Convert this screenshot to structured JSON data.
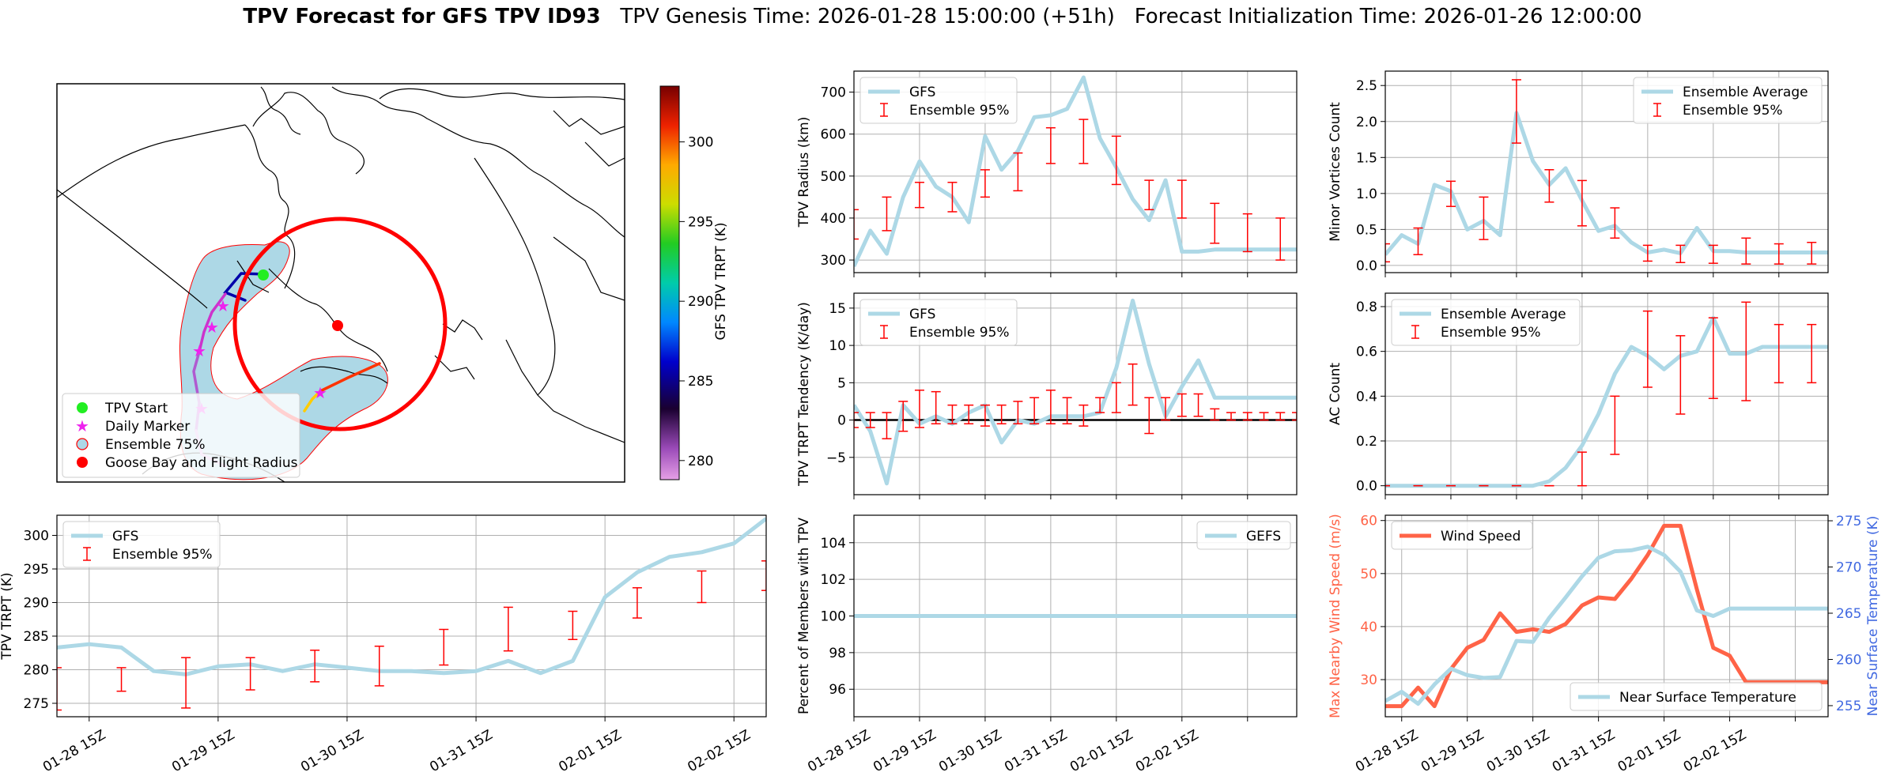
{
  "header": {
    "title_bold": "TPV Forecast for GFS TPV ID93",
    "title_rest": "   TPV Genesis Time: 2026-01-28 15:00:00 (+51h)   Forecast Initialization Time: 2026-01-26 12:00:00"
  },
  "colors": {
    "gfs": "#add8e6",
    "ens": "#ff0000",
    "wind": "#ff6347",
    "temp_axis": "#4169e1",
    "zero": "#000000"
  },
  "map": {
    "legend": [
      {
        "label": "TPV Start",
        "marker": "circle",
        "color": "#22ee22"
      },
      {
        "label": "Daily Marker",
        "marker": "star",
        "color": "#ee22ee"
      },
      {
        "label": "Ensemble 75%",
        "marker": "circle",
        "color": "#add8e6",
        "edge": "#ff0000"
      },
      {
        "label": "Goose Bay and Flight Radius",
        "marker": "circle",
        "color": "#ff0000"
      }
    ],
    "colorbar": {
      "label": "GFS TPV TRPT (K)",
      "ticks": [
        280,
        285,
        290,
        295,
        300
      ],
      "range": [
        278.8,
        303.5
      ]
    }
  },
  "chart_data": [
    {
      "id": "radius",
      "type": "line",
      "ylabel": "TPV Radius (km)",
      "ylim": [
        270,
        750
      ],
      "yticks": [
        300,
        400,
        500,
        600,
        700
      ],
      "xlim": [
        0,
        27
      ],
      "xticks": [
        0,
        4,
        8,
        12,
        16,
        20,
        24
      ],
      "xticklabels": [],
      "legend_pos": "upper-left",
      "series": [
        {
          "name": "GFS",
          "kind": "line",
          "x": [
            0,
            1,
            2,
            3,
            4,
            5,
            6,
            7,
            8,
            9,
            10,
            11,
            12,
            13,
            14,
            15,
            16,
            17,
            18,
            19,
            20,
            21,
            22,
            23,
            24,
            25,
            26,
            27
          ],
          "y": [
            285,
            370,
            315,
            450,
            535,
            475,
            450,
            390,
            595,
            515,
            560,
            640,
            645,
            660,
            735,
            590,
            520,
            445,
            395,
            490,
            320,
            320,
            325,
            325,
            325,
            325,
            325,
            325
          ]
        },
        {
          "name": "Ensemble 95%",
          "kind": "errorbar",
          "x": [
            0,
            2,
            4,
            6,
            8,
            10,
            12,
            14,
            16,
            18,
            20,
            22,
            24,
            26
          ],
          "lo": [
            350,
            370,
            425,
            415,
            450,
            465,
            530,
            530,
            480,
            420,
            400,
            340,
            320,
            300
          ],
          "hi": [
            420,
            450,
            485,
            485,
            515,
            555,
            615,
            635,
            595,
            490,
            490,
            435,
            410,
            400
          ]
        }
      ]
    },
    {
      "id": "minor",
      "type": "line",
      "ylabel": "Minor Vortices Count",
      "ylim": [
        -0.1,
        2.7
      ],
      "yticks": [
        0.0,
        0.5,
        1.0,
        1.5,
        2.0,
        2.5
      ],
      "xlim": [
        0,
        27
      ],
      "xticks": [
        0,
        4,
        8,
        12,
        16,
        20,
        24
      ],
      "xticklabels": [],
      "legend_pos": "upper-right",
      "series": [
        {
          "name": "Ensemble Average",
          "kind": "line",
          "x": [
            0,
            1,
            2,
            3,
            4,
            5,
            6,
            7,
            8,
            9,
            10,
            11,
            12,
            13,
            14,
            15,
            16,
            17,
            18,
            19,
            20,
            21,
            22,
            23,
            24,
            25,
            26,
            27
          ],
          "y": [
            0.15,
            0.42,
            0.3,
            1.12,
            1.03,
            0.5,
            0.62,
            0.42,
            2.12,
            1.45,
            1.12,
            1.35,
            0.9,
            0.48,
            0.55,
            0.32,
            0.18,
            0.22,
            0.17,
            0.52,
            0.2,
            0.2,
            0.18,
            0.18,
            0.18,
            0.18,
            0.18,
            0.18
          ]
        },
        {
          "name": "Ensemble 95%",
          "kind": "errorbar",
          "x": [
            0,
            2,
            4,
            6,
            8,
            10,
            12,
            14,
            16,
            18,
            20,
            22,
            24,
            26
          ],
          "lo": [
            0.05,
            0.15,
            0.82,
            0.36,
            1.7,
            0.88,
            0.55,
            0.38,
            0.06,
            0.04,
            0.03,
            0.02,
            0.02,
            0.02
          ],
          "hi": [
            0.3,
            0.52,
            1.17,
            0.95,
            2.58,
            1.33,
            1.18,
            0.8,
            0.28,
            0.28,
            0.28,
            0.38,
            0.3,
            0.32
          ]
        }
      ]
    },
    {
      "id": "tend",
      "type": "line",
      "ylabel": "TPV TRPT Tendency (K/day)",
      "ylim": [
        -10,
        17
      ],
      "yticks": [
        -5,
        0,
        5,
        10,
        15
      ],
      "yticklabels": [
        "−5",
        "0",
        "5",
        "10",
        "15"
      ],
      "xlim": [
        0,
        27
      ],
      "xticks": [
        0,
        4,
        8,
        12,
        16,
        20,
        24
      ],
      "xticklabels": [],
      "legend_pos": "upper-left",
      "zero_line": true,
      "series": [
        {
          "name": "GFS",
          "kind": "line",
          "x": [
            0,
            1,
            2,
            3,
            4,
            5,
            6,
            7,
            8,
            9,
            10,
            11,
            12,
            13,
            14,
            15,
            16,
            17,
            18,
            19,
            20,
            21,
            22,
            23,
            24,
            25,
            26,
            27
          ],
          "y": [
            2,
            -1.5,
            -8.5,
            2,
            -0.5,
            0.5,
            -0.5,
            1,
            2,
            -3,
            0,
            -0.5,
            0.5,
            0.5,
            0.5,
            1,
            7,
            16,
            7.5,
            0.5,
            4.5,
            8,
            3,
            3,
            3,
            3,
            3,
            3
          ]
        },
        {
          "name": "Ensemble 95%",
          "kind": "errorbar",
          "x": [
            0,
            1,
            2,
            3,
            4,
            5,
            6,
            7,
            8,
            9,
            10,
            11,
            12,
            13,
            14,
            15,
            16,
            17,
            18,
            19,
            20,
            21,
            22,
            23,
            24,
            25,
            26,
            27
          ],
          "lo": [
            -1,
            -1,
            -2.5,
            -1.5,
            -1,
            -0.5,
            -0.5,
            -0.5,
            -0.8,
            -0.5,
            -0.5,
            -0.5,
            -0.5,
            -0.5,
            -0.8,
            1,
            1,
            2,
            -1.8,
            0,
            0.5,
            0.5,
            0,
            0,
            0,
            0,
            0,
            0
          ],
          "hi": [
            1,
            1,
            1,
            2.5,
            4,
            3.8,
            2,
            2,
            2,
            2,
            2.5,
            3,
            4,
            3,
            2,
            3,
            5,
            7.5,
            3,
            3,
            3.5,
            3.5,
            1.5,
            1,
            1,
            1,
            1,
            1
          ]
        }
      ]
    },
    {
      "id": "ac",
      "type": "line",
      "ylabel": "AC Count",
      "ylim": [
        -0.04,
        0.86
      ],
      "yticks": [
        0.0,
        0.2,
        0.4,
        0.6,
        0.8
      ],
      "xlim": [
        0,
        27
      ],
      "xticks": [
        0,
        4,
        8,
        12,
        16,
        20,
        24
      ],
      "xticklabels": [],
      "legend_pos": "upper-left",
      "series": [
        {
          "name": "Ensemble Average",
          "kind": "line",
          "x": [
            0,
            1,
            2,
            3,
            4,
            5,
            6,
            7,
            8,
            9,
            10,
            11,
            12,
            13,
            14,
            15,
            16,
            17,
            18,
            19,
            20,
            21,
            22,
            23,
            24,
            25,
            26,
            27
          ],
          "y": [
            0,
            0,
            0,
            0,
            0,
            0,
            0,
            0,
            0,
            0,
            0.02,
            0.08,
            0.18,
            0.32,
            0.5,
            0.62,
            0.58,
            0.52,
            0.58,
            0.6,
            0.75,
            0.59,
            0.59,
            0.62,
            0.62,
            0.62,
            0.62,
            0.62
          ]
        },
        {
          "name": "Ensemble 95%",
          "kind": "errorbar",
          "x": [
            0,
            2,
            4,
            6,
            8,
            10,
            12,
            14,
            16,
            18,
            20,
            22,
            24,
            26
          ],
          "lo": [
            0,
            0,
            0,
            0,
            0,
            0,
            0,
            0.14,
            0.44,
            0.32,
            0.39,
            0.38,
            0.46,
            0.46
          ],
          "hi": [
            0,
            0,
            0,
            0,
            0,
            0,
            0.15,
            0.4,
            0.78,
            0.67,
            0.75,
            0.82,
            0.72,
            0.72
          ]
        }
      ]
    },
    {
      "id": "trpt",
      "type": "line",
      "ylabel": "TPV TRPT (K)",
      "ylim": [
        273,
        303
      ],
      "yticks": [
        275,
        280,
        285,
        290,
        295,
        300
      ],
      "xlim": [
        0,
        22
      ],
      "xticks": [
        1,
        5,
        9,
        13,
        17,
        21
      ],
      "xticklabels": [
        "01-28 15Z",
        "01-29 15Z",
        "01-30 15Z",
        "01-31 15Z",
        "02-01 15Z",
        "02-02 15Z"
      ],
      "legend_pos": "upper-left",
      "series": [
        {
          "name": "GFS",
          "kind": "line",
          "x": [
            0,
            1,
            2,
            3,
            4,
            5,
            6,
            7,
            8,
            9,
            10,
            11,
            12,
            13,
            14,
            15,
            16,
            17,
            18,
            19,
            20,
            21,
            22
          ],
          "y": [
            283.3,
            283.8,
            283.3,
            279.8,
            279.3,
            280.5,
            280.8,
            279.8,
            280.8,
            280.3,
            279.8,
            279.8,
            279.5,
            279.8,
            281.3,
            279.5,
            281.3,
            290.8,
            294.5,
            296.8,
            297.5,
            298.8,
            302.5
          ]
        },
        {
          "name": "Ensemble 95%",
          "kind": "errorbar",
          "x": [
            0,
            2,
            4,
            6,
            8,
            10,
            12,
            14,
            16,
            18,
            20,
            22
          ],
          "lo": [
            274,
            276.8,
            274.3,
            277,
            278.2,
            277.6,
            280.7,
            282.8,
            284.5,
            287.7,
            290,
            291.8
          ],
          "hi": [
            280.3,
            280.3,
            281.8,
            281.8,
            282.9,
            283.5,
            286,
            289.3,
            288.7,
            292.2,
            294.7,
            296.2
          ]
        }
      ]
    },
    {
      "id": "pct",
      "type": "line",
      "ylabel": "Percent of Members with TPV",
      "ylim": [
        94.5,
        105.5
      ],
      "yticks": [
        96,
        98,
        100,
        102,
        104
      ],
      "xlim": [
        0,
        27
      ],
      "xticks": [
        0,
        4,
        8,
        12,
        16,
        20,
        24
      ],
      "xticklabels": [
        "01-28 15Z",
        "01-29 15Z",
        "01-30 15Z",
        "01-31 15Z",
        "02-01 15Z",
        "02-02 15Z",
        ""
      ],
      "xtick_offset": 1,
      "legend_pos": "upper-right",
      "series": [
        {
          "name": "GEFS",
          "kind": "line",
          "x": [
            0,
            27
          ],
          "y": [
            100,
            100
          ]
        }
      ]
    },
    {
      "id": "wind",
      "type": "line",
      "ylabel": "Max Nearby Wind Speed (m/s)",
      "ylabel_color": "#ff6347",
      "ylim": [
        23,
        61
      ],
      "yticks": [
        30,
        40,
        50,
        60
      ],
      "y2label": "Near Surface Temperature (K)",
      "y2label_color": "#4169e1",
      "y2lim": [
        253.8,
        275.6
      ],
      "y2ticks": [
        255,
        260,
        265,
        270,
        275
      ],
      "xlim": [
        0,
        27
      ],
      "xticks": [
        1,
        5,
        9,
        13,
        17,
        21,
        25
      ],
      "xticklabels": [
        "01-28 15Z",
        "01-29 15Z",
        "01-30 15Z",
        "01-31 15Z",
        "02-01 15Z",
        "02-02 15Z"
      ],
      "series": [
        {
          "name": "Wind Speed",
          "kind": "line",
          "axis": "left",
          "legend_pos": "upper-left",
          "x": [
            0,
            1,
            2,
            3,
            4,
            5,
            6,
            7,
            8,
            9,
            10,
            11,
            12,
            13,
            14,
            15,
            16,
            17,
            18,
            19,
            20,
            21,
            22,
            23,
            24,
            25,
            26,
            27
          ],
          "y": [
            25,
            25,
            28.5,
            25,
            32,
            36,
            37.5,
            42.5,
            39,
            39.5,
            39,
            40.5,
            44,
            45.5,
            45.2,
            49,
            53.5,
            59,
            59,
            47,
            36,
            34.5,
            29.5,
            29.5,
            29.5,
            29.5,
            29.5,
            29.5
          ]
        },
        {
          "name": "Near Surface Temperature",
          "kind": "line",
          "axis": "right",
          "legend_pos": "lower-right",
          "x": [
            0,
            1,
            2,
            3,
            4,
            5,
            6,
            7,
            8,
            9,
            10,
            11,
            12,
            13,
            14,
            15,
            16,
            17,
            18,
            19,
            20,
            21,
            22,
            23,
            24,
            25,
            26,
            27
          ],
          "y": [
            255.5,
            256.5,
            255.2,
            257.3,
            259,
            258.3,
            258,
            258.1,
            262,
            261.9,
            264.5,
            266.7,
            269,
            271,
            271.7,
            271.8,
            272.2,
            271.3,
            269.5,
            265.3,
            264.7,
            265.5,
            265.5,
            265.5,
            265.5,
            265.5,
            265.5,
            265.5
          ]
        }
      ]
    }
  ]
}
